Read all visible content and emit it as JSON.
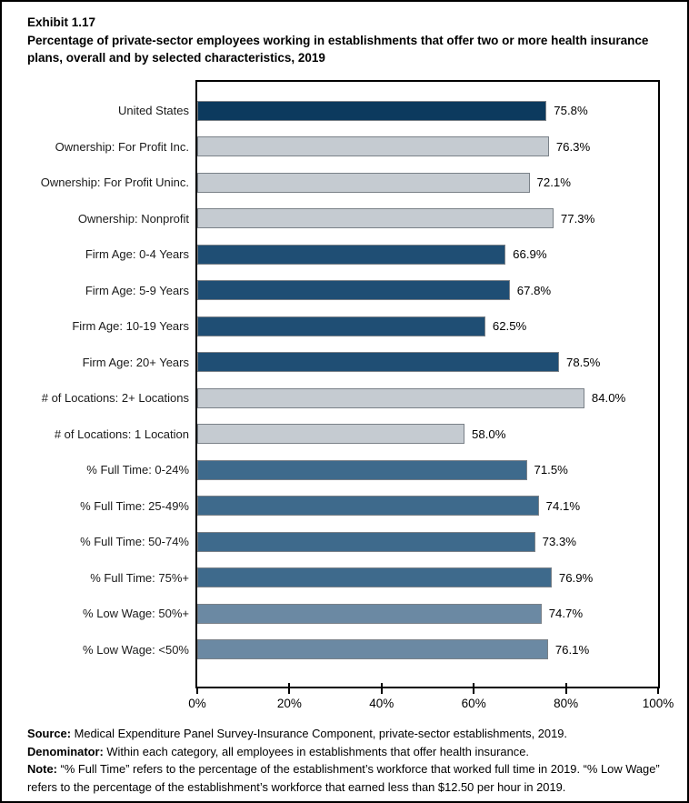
{
  "header": {
    "exhibit": "Exhibit 1.17",
    "title": "Percentage of private-sector employees working in establishments that offer two or more health insurance plans, overall and by selected characteristics, 2019"
  },
  "chart_data": {
    "type": "bar",
    "orientation": "horizontal",
    "title": "Percentage of private-sector employees working in establishments that offer two or more health insurance plans, overall and by selected characteristics, 2019",
    "categories": [
      "United States",
      "Ownership: For Profit Inc.",
      "Ownership: For Profit Uninc.",
      "Ownership: Nonprofit",
      "Firm Age: 0-4 Years",
      "Firm Age: 5-9 Years",
      "Firm Age: 10-19 Years",
      "Firm Age: 20+ Years",
      "# of Locations: 2+ Locations",
      "# of Locations: 1 Location",
      "% Full Time: 0-24%",
      "% Full Time: 25-49%",
      "% Full Time: 50-74%",
      "% Full Time: 75%+",
      "% Low Wage: 50%+",
      "% Low Wage: <50%"
    ],
    "values": [
      75.8,
      76.3,
      72.1,
      77.3,
      66.9,
      67.8,
      62.5,
      78.5,
      84.0,
      58.0,
      71.5,
      74.1,
      73.3,
      76.9,
      74.7,
      76.1
    ],
    "value_labels": [
      "75.8%",
      "76.3%",
      "72.1%",
      "77.3%",
      "66.9%",
      "67.8%",
      "62.5%",
      "78.5%",
      "84.0%",
      "58.0%",
      "71.5%",
      "74.1%",
      "73.3%",
      "76.9%",
      "74.7%",
      "76.1%"
    ],
    "bar_color_keys": [
      "dark_navy",
      "gray",
      "gray",
      "gray",
      "navy",
      "navy",
      "navy",
      "navy",
      "gray",
      "gray",
      "blue",
      "blue",
      "blue",
      "blue",
      "steel",
      "steel"
    ],
    "colors": {
      "dark_navy": "#0C3A5E",
      "navy": "#1F4E74",
      "blue": "#3E6A8C",
      "steel": "#6B89A3",
      "gray": "#C5CBD1",
      "bar_border": "#7A8188"
    },
    "xlim": [
      0,
      100
    ],
    "x_ticks": [
      "0%",
      "20%",
      "40%",
      "60%",
      "80%",
      "100%"
    ],
    "x_tick_values": [
      0,
      20,
      40,
      60,
      80,
      100
    ],
    "grid": false,
    "legend": false,
    "data_labels": "outside-end"
  },
  "footer": {
    "notes": [
      {
        "label": "Source:",
        "text": "Medical Expenditure Panel Survey-Insurance Component, private-sector establishments, 2019."
      },
      {
        "label": "Denominator:",
        "text": "Within each category, all employees in establishments that offer health insurance."
      },
      {
        "label": "Note:",
        "text": "“% Full Time” refers to the percentage of the establishment’s workforce that worked full time in 2019. “% Low Wage” refers to the percentage of the establishment’s workforce that earned less than $12.50 per hour in 2019."
      }
    ]
  }
}
